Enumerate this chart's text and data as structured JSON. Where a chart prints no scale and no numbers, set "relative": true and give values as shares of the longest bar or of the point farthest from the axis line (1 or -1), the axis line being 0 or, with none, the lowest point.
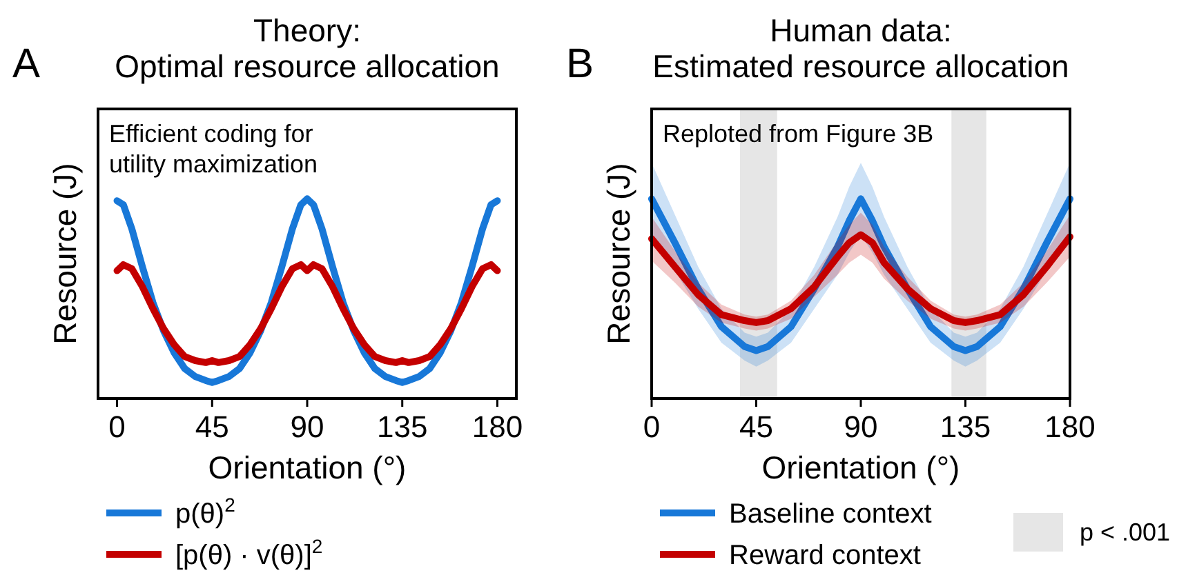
{
  "chart_data": [
    {
      "type": "line",
      "title": "Theory:\nOptimal resource allocation",
      "xlabel": "Orientation (°)",
      "ylabel": "Resource (J)",
      "relative": true,
      "legend": "bottom",
      "xlim": [
        -9,
        189
      ],
      "xticks": [
        0,
        45,
        90,
        135,
        180
      ],
      "annotations": [
        "A",
        "Efficient coding for\nutility maximization"
      ],
      "x": [
        0,
        3,
        7,
        12,
        17,
        22,
        27,
        32,
        37,
        42,
        45,
        48,
        53,
        58,
        63,
        68,
        73,
        78,
        83,
        87,
        90,
        93,
        97,
        102,
        107,
        112,
        117,
        122,
        127,
        132,
        135,
        138,
        143,
        148,
        153,
        158,
        163,
        168,
        173,
        177,
        180
      ],
      "series": [
        {
          "name": "p(θ)$^{2}$",
          "color": "#1878d8",
          "values": [
            0.99,
            0.97,
            0.85,
            0.66,
            0.48,
            0.34,
            0.23,
            0.15,
            0.11,
            0.09,
            0.08,
            0.09,
            0.11,
            0.15,
            0.23,
            0.34,
            0.48,
            0.66,
            0.85,
            0.97,
            1,
            0.97,
            0.85,
            0.66,
            0.48,
            0.34,
            0.23,
            0.15,
            0.11,
            0.09,
            0.08,
            0.09,
            0.11,
            0.15,
            0.23,
            0.34,
            0.48,
            0.66,
            0.85,
            0.97,
            0.99
          ]
        },
        {
          "name": "[p(θ) · v(θ)]$^{2}$",
          "color": "#c40000",
          "values": [
            0.64,
            0.67,
            0.65,
            0.56,
            0.45,
            0.35,
            0.27,
            0.21,
            0.19,
            0.18,
            0.19,
            0.18,
            0.19,
            0.21,
            0.27,
            0.35,
            0.45,
            0.56,
            0.65,
            0.67,
            0.64,
            0.67,
            0.65,
            0.56,
            0.45,
            0.35,
            0.27,
            0.21,
            0.19,
            0.18,
            0.19,
            0.18,
            0.19,
            0.21,
            0.27,
            0.35,
            0.45,
            0.56,
            0.65,
            0.67,
            0.64
          ]
        }
      ]
    },
    {
      "type": "line",
      "title": "Human data:\nEstimated resource allocation",
      "xlabel": "Orientation (°)",
      "ylabel": "Resource (J)",
      "relative": true,
      "legend": "bottom",
      "xlim": [
        0,
        180
      ],
      "xticks": [
        0,
        45,
        90,
        135,
        180
      ],
      "annotations": [
        "B",
        "Reploted from Figure 3B"
      ],
      "bands": [
        {
          "axis": "x",
          "from": 38,
          "to": 54,
          "label": "p < .001",
          "color": "#e6e6e6"
        },
        {
          "axis": "x",
          "from": 129,
          "to": 144,
          "color": "#e6e6e6"
        }
      ],
      "x": [
        0,
        10,
        20,
        30,
        40,
        45,
        50,
        60,
        70,
        80,
        85,
        90,
        95,
        100,
        110,
        120,
        130,
        135,
        140,
        150,
        160,
        170,
        180
      ],
      "series": [
        {
          "name": "Baseline context",
          "color": "#1878d8",
          "values": [
            1,
            0.78,
            0.55,
            0.36,
            0.26,
            0.24,
            0.26,
            0.36,
            0.55,
            0.76,
            0.89,
            1,
            0.89,
            0.76,
            0.55,
            0.36,
            0.26,
            0.24,
            0.26,
            0.36,
            0.55,
            0.78,
            1
          ],
          "lower": [
            0.82,
            0.64,
            0.45,
            0.28,
            0.19,
            0.16,
            0.19,
            0.28,
            0.45,
            0.62,
            0.73,
            0.82,
            0.73,
            0.62,
            0.45,
            0.28,
            0.19,
            0.16,
            0.19,
            0.28,
            0.45,
            0.64,
            0.82
          ],
          "upper": [
            1.18,
            0.92,
            0.66,
            0.45,
            0.33,
            0.31,
            0.33,
            0.45,
            0.66,
            0.91,
            1.06,
            1.18,
            1.06,
            0.91,
            0.66,
            0.45,
            0.33,
            0.31,
            0.33,
            0.45,
            0.66,
            0.92,
            1.18
          ]
        },
        {
          "name": "Reward context",
          "color": "#c40000",
          "values": [
            0.8,
            0.66,
            0.52,
            0.42,
            0.39,
            0.38,
            0.39,
            0.45,
            0.56,
            0.71,
            0.78,
            0.82,
            0.78,
            0.68,
            0.55,
            0.45,
            0.39,
            0.38,
            0.39,
            0.42,
            0.52,
            0.66,
            0.81
          ],
          "lower": [
            0.69,
            0.58,
            0.46,
            0.38,
            0.35,
            0.34,
            0.35,
            0.4,
            0.51,
            0.62,
            0.68,
            0.72,
            0.68,
            0.6,
            0.49,
            0.4,
            0.35,
            0.34,
            0.35,
            0.38,
            0.46,
            0.58,
            0.71
          ],
          "upper": [
            0.91,
            0.74,
            0.58,
            0.47,
            0.42,
            0.41,
            0.42,
            0.49,
            0.62,
            0.79,
            0.87,
            0.93,
            0.87,
            0.76,
            0.61,
            0.49,
            0.42,
            0.41,
            0.42,
            0.47,
            0.58,
            0.74,
            0.92
          ]
        }
      ]
    }
  ]
}
